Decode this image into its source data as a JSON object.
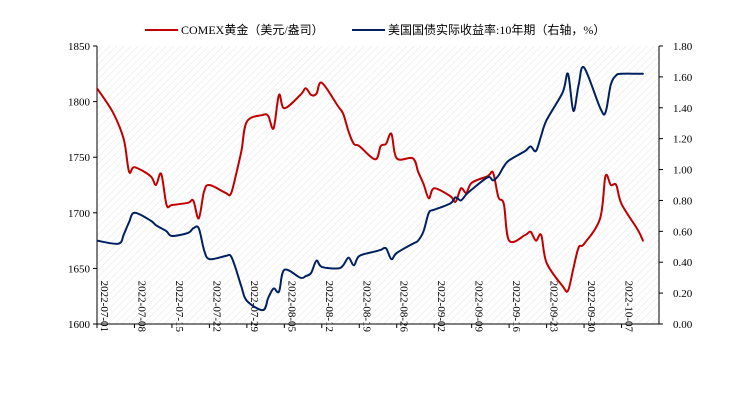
{
  "chart_data": {
    "type": "line",
    "title": "",
    "x": [
      "2022-07-01",
      "2022-07-08",
      "2022-07-15",
      "2022-07-22",
      "2022-07-29",
      "2022-08-05",
      "2022-08-12",
      "2022-08-19",
      "2022-08-26",
      "2022-09-02",
      "2022-09-09",
      "2022-09-16",
      "2022-09-23",
      "2022-09-30",
      "2022-10-07"
    ],
    "x_range": [
      "2022-07-01",
      "2022-10-14"
    ],
    "left_axis": {
      "ylim": [
        1600,
        1850
      ],
      "ticks": [
        "1600",
        "1650",
        "1700",
        "1750",
        "1800",
        "1850"
      ]
    },
    "right_axis": {
      "ylim": [
        0.0,
        1.8
      ],
      "ticks": [
        "0.00",
        "0.20",
        "0.40",
        "0.60",
        "0.80",
        "1.00",
        "1.20",
        "1.40",
        "1.60",
        "1.80"
      ]
    },
    "legend_position": "top",
    "grid": false,
    "background": "diagonal hatch",
    "series": [
      {
        "name": "COMEX黄金（美元/盎司）",
        "axis": "left",
        "color": "#c00000",
        "points": [
          [
            "2022-07-01",
            1812
          ],
          [
            "2022-07-04",
            1790
          ],
          [
            "2022-07-06",
            1766
          ],
          [
            "2022-07-07",
            1737
          ],
          [
            "2022-07-08",
            1741
          ],
          [
            "2022-07-11",
            1733
          ],
          [
            "2022-07-12",
            1725
          ],
          [
            "2022-07-13",
            1735
          ],
          [
            "2022-07-14",
            1707
          ],
          [
            "2022-07-15",
            1707
          ],
          [
            "2022-07-18",
            1709
          ],
          [
            "2022-07-19",
            1711
          ],
          [
            "2022-07-20",
            1695
          ],
          [
            "2022-07-21",
            1719
          ],
          [
            "2022-07-22",
            1725
          ],
          [
            "2022-07-25",
            1718
          ],
          [
            "2022-07-26",
            1717
          ],
          [
            "2022-07-27",
            1735
          ],
          [
            "2022-07-28",
            1756
          ],
          [
            "2022-07-29",
            1782
          ],
          [
            "2022-08-01",
            1788
          ],
          [
            "2022-08-02",
            1787
          ],
          [
            "2022-08-03",
            1776
          ],
          [
            "2022-08-04",
            1806
          ],
          [
            "2022-08-05",
            1794
          ],
          [
            "2022-08-08",
            1806
          ],
          [
            "2022-08-09",
            1812
          ],
          [
            "2022-08-10",
            1806
          ],
          [
            "2022-08-11",
            1807
          ],
          [
            "2022-08-12",
            1817
          ],
          [
            "2022-08-15",
            1796
          ],
          [
            "2022-08-16",
            1789
          ],
          [
            "2022-08-17",
            1773
          ],
          [
            "2022-08-18",
            1762
          ],
          [
            "2022-08-19",
            1760
          ],
          [
            "2022-08-22",
            1748
          ],
          [
            "2022-08-23",
            1760
          ],
          [
            "2022-08-24",
            1762
          ],
          [
            "2022-08-25",
            1771
          ],
          [
            "2022-08-26",
            1749
          ],
          [
            "2022-08-29",
            1749
          ],
          [
            "2022-08-30",
            1737
          ],
          [
            "2022-08-31",
            1726
          ],
          [
            "2022-09-01",
            1713
          ],
          [
            "2022-09-02",
            1722
          ],
          [
            "2022-09-05",
            1715
          ],
          [
            "2022-09-06",
            1710
          ],
          [
            "2022-09-07",
            1722
          ],
          [
            "2022-09-08",
            1718
          ],
          [
            "2022-09-09",
            1727
          ],
          [
            "2022-09-12",
            1733
          ],
          [
            "2022-09-13",
            1736
          ],
          [
            "2022-09-14",
            1714
          ],
          [
            "2022-09-15",
            1708
          ],
          [
            "2022-09-16",
            1675
          ],
          [
            "2022-09-19",
            1680
          ],
          [
            "2022-09-20",
            1683
          ],
          [
            "2022-09-21",
            1675
          ],
          [
            "2022-09-22",
            1680
          ],
          [
            "2022-09-23",
            1655
          ],
          [
            "2022-09-26",
            1634
          ],
          [
            "2022-09-27",
            1630
          ],
          [
            "2022-09-28",
            1650
          ],
          [
            "2022-09-29",
            1669
          ],
          [
            "2022-09-30",
            1672
          ],
          [
            "2022-10-03",
            1695
          ],
          [
            "2022-10-04",
            1733
          ],
          [
            "2022-10-05",
            1725
          ],
          [
            "2022-10-06",
            1725
          ],
          [
            "2022-10-07",
            1708
          ],
          [
            "2022-10-10",
            1685
          ],
          [
            "2022-10-11",
            1675
          ]
        ]
      },
      {
        "name": "美国国债实际收益率:10年期（右轴，%）",
        "axis": "right",
        "color": "#002060",
        "points": [
          [
            "2022-07-01",
            0.54
          ],
          [
            "2022-07-05",
            0.52
          ],
          [
            "2022-07-06",
            0.58
          ],
          [
            "2022-07-07",
            0.66
          ],
          [
            "2022-07-08",
            0.72
          ],
          [
            "2022-07-11",
            0.67
          ],
          [
            "2022-07-12",
            0.64
          ],
          [
            "2022-07-13",
            0.62
          ],
          [
            "2022-07-14",
            0.6
          ],
          [
            "2022-07-15",
            0.57
          ],
          [
            "2022-07-18",
            0.59
          ],
          [
            "2022-07-19",
            0.62
          ],
          [
            "2022-07-20",
            0.62
          ],
          [
            "2022-07-21",
            0.48
          ],
          [
            "2022-07-22",
            0.42
          ],
          [
            "2022-07-25",
            0.44
          ],
          [
            "2022-07-26",
            0.44
          ],
          [
            "2022-07-27",
            0.35
          ],
          [
            "2022-07-28",
            0.24
          ],
          [
            "2022-07-29",
            0.15
          ],
          [
            "2022-08-01",
            0.09
          ],
          [
            "2022-08-02",
            0.17
          ],
          [
            "2022-08-03",
            0.23
          ],
          [
            "2022-08-04",
            0.21
          ],
          [
            "2022-08-05",
            0.35
          ],
          [
            "2022-08-08",
            0.3
          ],
          [
            "2022-08-09",
            0.31
          ],
          [
            "2022-08-10",
            0.33
          ],
          [
            "2022-08-11",
            0.41
          ],
          [
            "2022-08-12",
            0.37
          ],
          [
            "2022-08-15",
            0.36
          ],
          [
            "2022-08-16",
            0.38
          ],
          [
            "2022-08-17",
            0.43
          ],
          [
            "2022-08-18",
            0.38
          ],
          [
            "2022-08-19",
            0.44
          ],
          [
            "2022-08-22",
            0.47
          ],
          [
            "2022-08-23",
            0.48
          ],
          [
            "2022-08-24",
            0.49
          ],
          [
            "2022-08-25",
            0.42
          ],
          [
            "2022-08-26",
            0.46
          ],
          [
            "2022-08-29",
            0.52
          ],
          [
            "2022-08-30",
            0.54
          ],
          [
            "2022-08-31",
            0.6
          ],
          [
            "2022-09-01",
            0.72
          ],
          [
            "2022-09-02",
            0.74
          ],
          [
            "2022-09-05",
            0.78
          ],
          [
            "2022-09-06",
            0.82
          ],
          [
            "2022-09-07",
            0.8
          ],
          [
            "2022-09-08",
            0.84
          ],
          [
            "2022-09-09",
            0.87
          ],
          [
            "2022-09-12",
            0.95
          ],
          [
            "2022-09-13",
            0.93
          ],
          [
            "2022-09-14",
            0.96
          ],
          [
            "2022-09-15",
            1.02
          ],
          [
            "2022-09-16",
            1.06
          ],
          [
            "2022-09-19",
            1.12
          ],
          [
            "2022-09-20",
            1.15
          ],
          [
            "2022-09-21",
            1.12
          ],
          [
            "2022-09-22",
            1.22
          ],
          [
            "2022-09-23",
            1.32
          ],
          [
            "2022-09-26",
            1.5
          ],
          [
            "2022-09-27",
            1.62
          ],
          [
            "2022-09-28",
            1.38
          ],
          [
            "2022-09-29",
            1.55
          ],
          [
            "2022-09-30",
            1.66
          ],
          [
            "2022-10-03",
            1.4
          ],
          [
            "2022-10-04",
            1.37
          ],
          [
            "2022-10-05",
            1.55
          ],
          [
            "2022-10-06",
            1.61
          ],
          [
            "2022-10-07",
            1.62
          ],
          [
            "2022-10-10",
            1.62
          ],
          [
            "2022-10-11",
            1.62
          ]
        ]
      }
    ]
  }
}
